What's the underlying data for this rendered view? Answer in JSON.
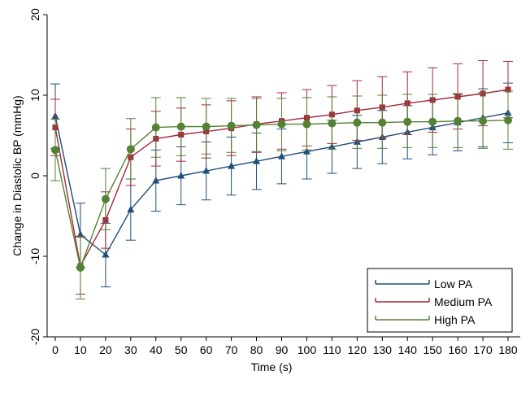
{
  "chart_data": {
    "type": "line",
    "title": "",
    "xlabel": "Time (s)",
    "ylabel": "Change in Diastolic BP (mmHg)",
    "xlim": [
      0,
      180
    ],
    "ylim": [
      -20,
      20
    ],
    "x_ticks": [
      0,
      10,
      20,
      30,
      40,
      50,
      60,
      70,
      80,
      90,
      100,
      110,
      120,
      130,
      140,
      150,
      160,
      170,
      180
    ],
    "y_ticks": [
      -20,
      -10,
      0,
      10,
      20
    ],
    "legend_position": "bottom-right",
    "x": [
      0,
      10,
      20,
      30,
      40,
      50,
      60,
      70,
      80,
      90,
      100,
      110,
      120,
      130,
      140,
      150,
      160,
      170,
      180
    ],
    "series": [
      {
        "name": "Low PA",
        "color": "#1f4e79",
        "marker": "triangle",
        "values": [
          7.4,
          -7.3,
          -9.8,
          -4.2,
          -0.6,
          0.0,
          0.6,
          1.2,
          1.8,
          2.4,
          3.0,
          3.6,
          4.2,
          4.8,
          5.4,
          6.0,
          6.6,
          7.2,
          7.8
        ],
        "lower": [
          3.4,
          -11.4,
          -13.8,
          -8.0,
          -4.4,
          -3.6,
          -3.0,
          -2.4,
          -1.7,
          -1.0,
          -0.4,
          0.3,
          0.9,
          1.5,
          2.1,
          2.6,
          3.1,
          3.6,
          4.1
        ],
        "upper": [
          11.4,
          -3.4,
          -5.9,
          -0.4,
          3.2,
          3.6,
          4.2,
          4.8,
          5.3,
          5.8,
          6.4,
          6.9,
          7.5,
          8.1,
          8.7,
          9.4,
          10.1,
          10.8,
          11.5
        ]
      },
      {
        "name": "Medium PA",
        "color": "#a52a3a",
        "marker": "square",
        "values": [
          6.0,
          -11.2,
          -5.5,
          2.3,
          4.6,
          5.1,
          5.5,
          5.9,
          6.4,
          6.8,
          7.2,
          7.6,
          8.1,
          8.5,
          9.0,
          9.4,
          9.8,
          10.2,
          10.7
        ],
        "lower": [
          2.5,
          -14.7,
          -9.0,
          -1.2,
          1.2,
          1.8,
          2.2,
          2.5,
          2.9,
          3.3,
          3.7,
          4.0,
          4.4,
          4.7,
          5.1,
          5.4,
          5.8,
          6.2,
          7.2
        ],
        "upper": [
          9.5,
          -7.6,
          -2.0,
          5.8,
          8.0,
          8.4,
          8.8,
          9.3,
          9.8,
          10.3,
          10.7,
          11.2,
          11.8,
          12.3,
          12.9,
          13.4,
          13.9,
          14.3,
          14.2
        ]
      },
      {
        "name": "High PA",
        "color": "#548235",
        "marker": "circle",
        "values": [
          3.2,
          -11.4,
          -2.9,
          3.3,
          6.0,
          6.1,
          6.1,
          6.2,
          6.3,
          6.4,
          6.4,
          6.5,
          6.6,
          6.6,
          6.7,
          6.7,
          6.8,
          6.8,
          6.9
        ],
        "lower": [
          -0.6,
          -15.3,
          -6.7,
          -0.4,
          2.3,
          2.5,
          2.7,
          2.9,
          3.0,
          3.1,
          3.2,
          3.3,
          3.4,
          3.4,
          3.5,
          3.5,
          3.5,
          3.4,
          3.3
        ],
        "upper": [
          7.0,
          -7.5,
          0.9,
          7.1,
          9.7,
          9.7,
          9.6,
          9.6,
          9.6,
          9.6,
          9.7,
          9.8,
          9.9,
          10.0,
          10.1,
          10.1,
          10.2,
          10.3,
          10.5
        ]
      }
    ]
  }
}
